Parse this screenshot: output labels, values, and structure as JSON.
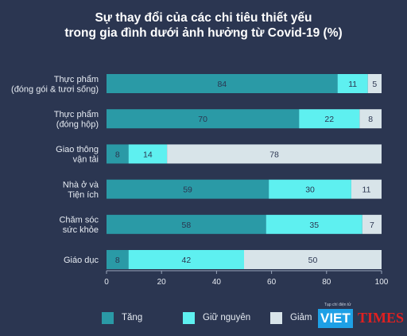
{
  "title_line1": "Sự thay đổi của các chi tiêu thiết yếu",
  "title_line2": "trong gia đình dưới ảnh hưởng từ Covid-19 (%)",
  "chart_data": {
    "type": "bar",
    "orientation": "horizontal",
    "stacked": true,
    "categories": [
      [
        "Thực phẩm",
        "(đóng gói & tươi sống)"
      ],
      [
        "Thực phẩm",
        "(đóng hộp)"
      ],
      [
        "Giao thông",
        "vận tải"
      ],
      [
        "Nhà ở và",
        "Tiện ích"
      ],
      [
        "Chăm sóc",
        "sức khỏe"
      ],
      [
        "Giáo dục"
      ]
    ],
    "series": [
      {
        "name": "Tăng",
        "values": [
          84,
          70,
          8,
          59,
          58,
          8
        ],
        "color": "#2a9aa6"
      },
      {
        "name": "Giữ nguyên",
        "values": [
          11,
          22,
          14,
          30,
          35,
          42
        ],
        "color": "#5ef0f0"
      },
      {
        "name": "Giảm",
        "values": [
          5,
          8,
          78,
          11,
          7,
          50
        ],
        "color": "#d8e4e9"
      }
    ],
    "xlim": [
      0,
      100
    ],
    "xticks": [
      0,
      20,
      40,
      60,
      80,
      100
    ],
    "grid": false,
    "legend_position": "bottom"
  },
  "logo": {
    "small_text": "Tạp chí điện tử",
    "viet": "VIET",
    "times": "TIMES"
  }
}
